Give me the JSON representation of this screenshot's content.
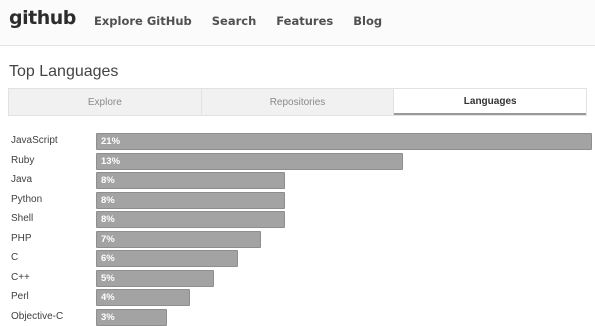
{
  "header": {
    "logo": "github",
    "nav": [
      "Explore GitHub",
      "Search",
      "Features",
      "Blog"
    ]
  },
  "page_title": "Top Languages",
  "tabs": [
    {
      "label": "Explore",
      "active": false
    },
    {
      "label": "Repositories",
      "active": false
    },
    {
      "label": "Languages",
      "active": true
    }
  ],
  "bar_color": "#a3a3a3",
  "languages": [
    {
      "name": "JavaScript",
      "label": "21%",
      "percent": 21
    },
    {
      "name": "Ruby",
      "label": "13%",
      "percent": 13
    },
    {
      "name": "Java",
      "label": "8%",
      "percent": 8
    },
    {
      "name": "Python",
      "label": "8%",
      "percent": 8
    },
    {
      "name": "Shell",
      "label": "8%",
      "percent": 8
    },
    {
      "name": "PHP",
      "label": "7%",
      "percent": 7
    },
    {
      "name": "C",
      "label": "6%",
      "percent": 6
    },
    {
      "name": "C++",
      "label": "5%",
      "percent": 5
    },
    {
      "name": "Perl",
      "label": "4%",
      "percent": 4
    },
    {
      "name": "Objective-C",
      "label": "3%",
      "percent": 3
    }
  ]
}
